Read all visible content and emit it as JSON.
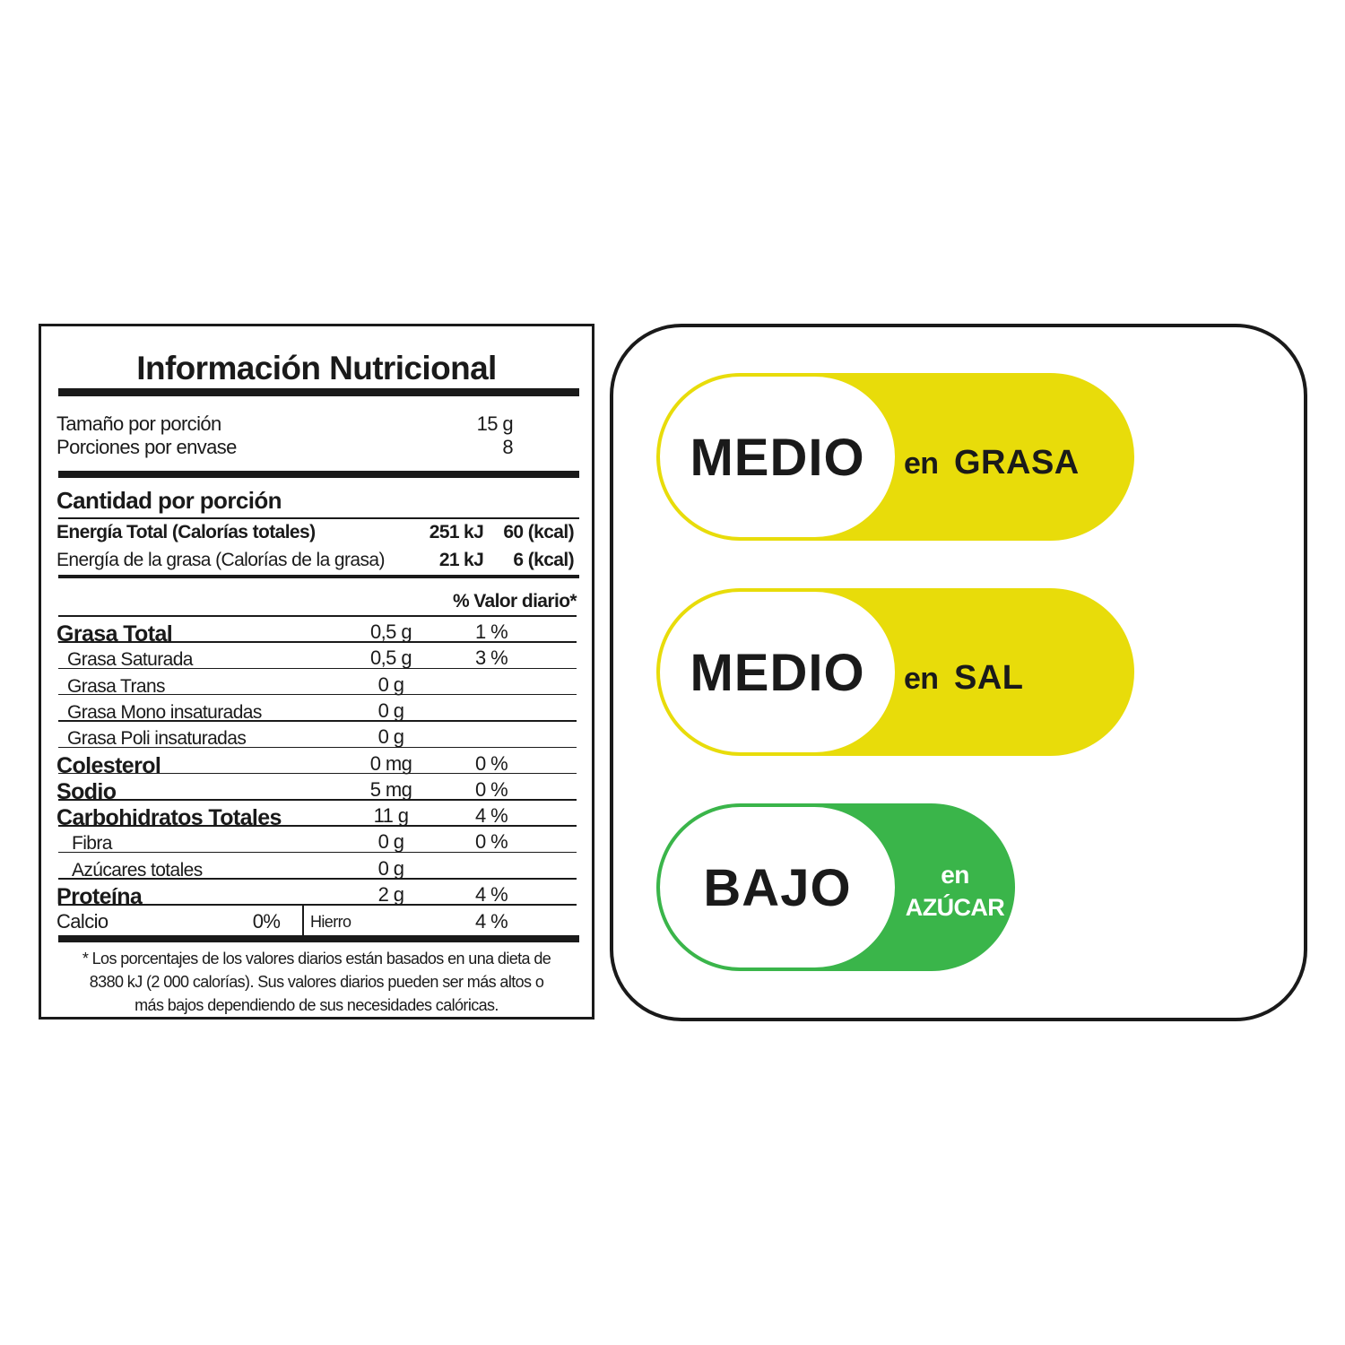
{
  "header": {
    "title": "Información Nutricional"
  },
  "serving": [
    {
      "label": "Tamaño por porción",
      "value": "15 g"
    },
    {
      "label": "Porciones por envase",
      "value": "8"
    }
  ],
  "amount_heading": "Cantidad por porción",
  "energy": [
    {
      "label": "Energía Total (Calorías totales)",
      "kj": "251",
      "kj_unit": "kJ",
      "kcal": "60 (kcal)"
    },
    {
      "label": "Energía de la grasa (Calorías de la grasa)",
      "kj": "21",
      "kj_unit": "kJ",
      "kcal": "6 (kcal)"
    }
  ],
  "dv_heading": "% Valor diario*",
  "nutrients": [
    {
      "name": "Grasa Total",
      "amount": "0,5 g",
      "dv": "1 %",
      "sub": [
        {
          "name": "Grasa Saturada",
          "amount": "0,5 g",
          "dv": "3 %"
        },
        {
          "name": "Grasa Trans",
          "amount": "0 g"
        },
        {
          "name": "Grasa Mono insaturadas",
          "amount": "0 g"
        },
        {
          "name": "Grasa Poli insaturadas",
          "amount": "0 g"
        }
      ]
    },
    {
      "name": "Colesterol",
      "amount": "0 mg",
      "dv": "0 %"
    },
    {
      "name": "Sodio",
      "amount": "5 mg",
      "dv": "0 %"
    },
    {
      "name": "Carbohidratos Totales",
      "amount": "11 g",
      "dv": "4 %",
      "sub": [
        {
          "name": "Fibra",
          "amount": "0 g",
          "dv": "0 %"
        },
        {
          "name": "Azúcares totales",
          "amount": "0 g"
        }
      ]
    },
    {
      "name": "Proteína",
      "amount": "2 g",
      "dv": "4 %"
    }
  ],
  "minerals": [
    {
      "name": "Calcio",
      "dv": "0%"
    },
    {
      "name": "Hierro",
      "dv": "4 %"
    }
  ],
  "footnote": [
    "* Los porcentajes de los valores diarios están basados en una dieta de",
    "8380 kJ (2 000 calorías). Sus valores diarios pueden ser más altos o",
    "más bajos dependiendo de sus necesidades calóricas."
  ],
  "badges": [
    {
      "level": "MEDIO",
      "connector": "en",
      "nutrient": "GRASA",
      "color": "#e8dc0a",
      "text_color": "#1a1a1a"
    },
    {
      "level": "MEDIO",
      "connector": "en",
      "nutrient": "SAL",
      "color": "#e8dc0a",
      "text_color": "#1a1a1a"
    },
    {
      "level": "BAJO",
      "connector": "en",
      "nutrient": "AZÚCAR",
      "color": "#3ab54a",
      "text_color": "#ffffff"
    }
  ]
}
